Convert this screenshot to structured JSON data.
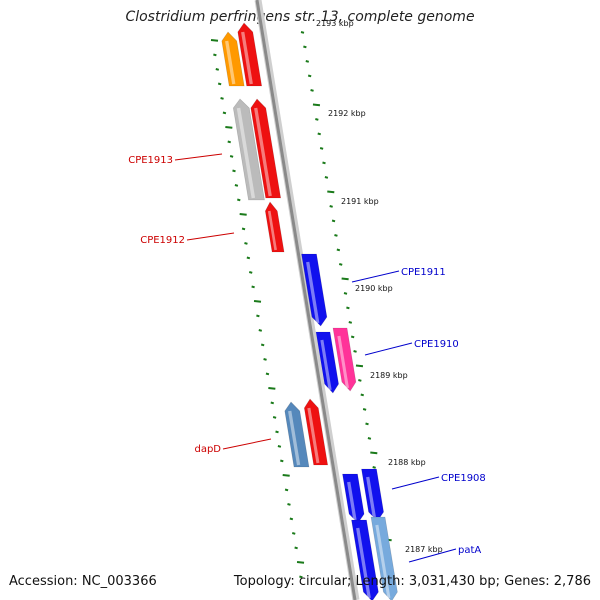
{
  "title": "Clostridium perfringens str. 13, complete genome",
  "footer": {
    "accession": "Accession: NC_003366",
    "summary": "Topology: circular; Length: 3,031,430 bp; Genes: 2,786"
  },
  "colors": {
    "backbone": "#8a8a8a",
    "tick": "#1a7a1a",
    "label_forward": "#0000cc",
    "label_reverse": "#cc0000"
  },
  "scale_labels": [
    "2193 kbp",
    "2192 kbp",
    "2191 kbp",
    "2190 kbp",
    "2189 kbp",
    "2188 kbp",
    "2187 kbp"
  ],
  "gene_labels": [
    {
      "name": "CPE1913",
      "strand": "reverse"
    },
    {
      "name": "CPE1912",
      "strand": "reverse"
    },
    {
      "name": "CPE1911",
      "strand": "forward"
    },
    {
      "name": "CPE1910",
      "strand": "forward"
    },
    {
      "name": "dapD",
      "strand": "reverse"
    },
    {
      "name": "CPE1908",
      "strand": "forward"
    },
    {
      "name": "patA",
      "strand": "forward"
    }
  ],
  "features": [
    {
      "color": "#ff9900",
      "strand": "reverse"
    },
    {
      "color": "#ee1111",
      "strand": "reverse"
    },
    {
      "color": "#bbbbbb",
      "strand": "reverse"
    },
    {
      "color": "#ee1111",
      "strand": "reverse"
    },
    {
      "color": "#ee1111",
      "strand": "reverse"
    },
    {
      "color": "#1111ee",
      "strand": "forward"
    },
    {
      "color": "#1111ee",
      "strand": "forward"
    },
    {
      "color": "#ff3399",
      "strand": "forward"
    },
    {
      "color": "#5588bb",
      "strand": "reverse"
    },
    {
      "color": "#ee1111",
      "strand": "reverse"
    },
    {
      "color": "#1111ee",
      "strand": "forward"
    },
    {
      "color": "#1111ee",
      "strand": "forward"
    },
    {
      "color": "#1111ee",
      "strand": "forward"
    },
    {
      "color": "#77aadd",
      "strand": "forward"
    }
  ]
}
